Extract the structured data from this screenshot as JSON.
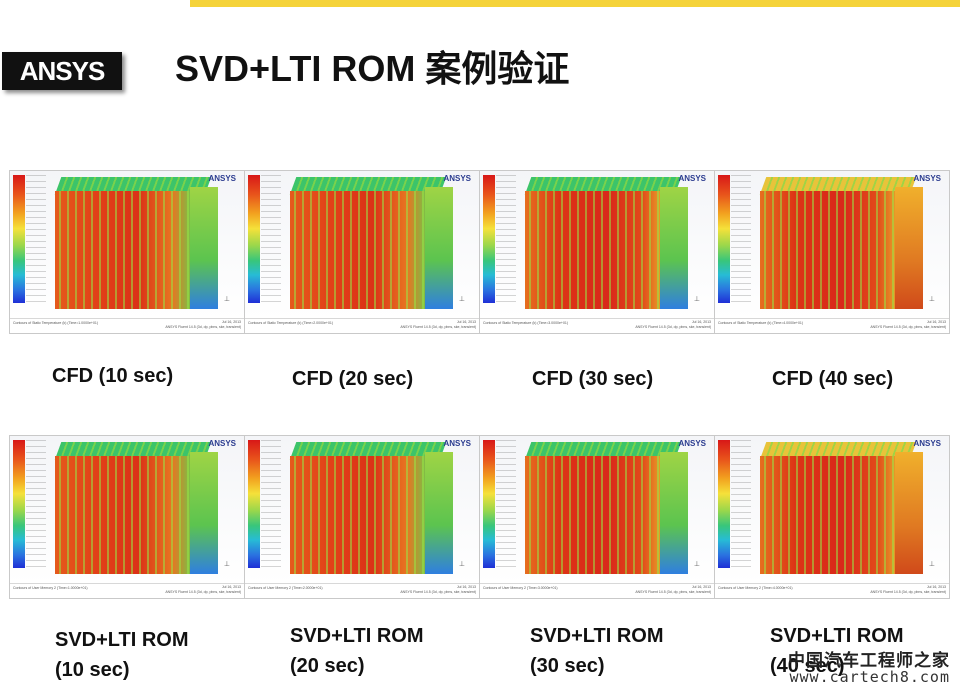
{
  "slide": {
    "title": "SVD+LTI ROM 案例验证",
    "logo_text": "ANSYS",
    "accent_color": "#f5d33a"
  },
  "panels": [
    {
      "brand": "ANSYS",
      "footer_left": "Contours of Static Temperature (k) (Time=1.0000e+01)",
      "footer_right_top": "Jul 16, 2013",
      "footer_right_bottom": "ANSYS Fluent 14.5 (3d, dp, pbns, ske, transient)",
      "caption": "CFD (10 sec)"
    },
    {
      "brand": "ANSYS",
      "footer_left": "Contours of Static Temperature (k) (Time=2.0000e+01)",
      "footer_right_top": "Jul 16, 2013",
      "footer_right_bottom": "ANSYS Fluent 14.5 (3d, dp, pbns, ske, transient)",
      "caption": "CFD (20 sec)"
    },
    {
      "brand": "ANSYS",
      "footer_left": "Contours of Static Temperature (k) (Time=3.0000e+01)",
      "footer_right_top": "Jul 16, 2013",
      "footer_right_bottom": "ANSYS Fluent 14.5 (3d, dp, pbns, ske, transient)",
      "caption": "CFD (30 sec)"
    },
    {
      "brand": "ANSYS",
      "footer_left": "Contours of Static Temperature (k) (Time=4.0000e+01)",
      "footer_right_top": "Jul 16, 2013",
      "footer_right_bottom": "ANSYS Fluent 14.5 (3d, dp, pbns, ske, transient)",
      "caption": "CFD (40 sec)"
    },
    {
      "brand": "ANSYS",
      "footer_left": "Contours of User Memory 2 (Time=1.0000e+01)",
      "footer_right_top": "Jul 16, 2013",
      "footer_right_bottom": "ANSYS Fluent 14.5 (3d, dp, pbns, ske, transient)",
      "caption_line1": "SVD+LTI ROM",
      "caption_line2": "(10 sec)"
    },
    {
      "brand": "ANSYS",
      "footer_left": "Contours of User Memory 2 (Time=2.0000e+01)",
      "footer_right_top": "Jul 16, 2013",
      "footer_right_bottom": "ANSYS Fluent 14.5 (3d, dp, pbns, ske, transient)",
      "caption_line1": "SVD+LTI ROM",
      "caption_line2": "(20 sec)"
    },
    {
      "brand": "ANSYS",
      "footer_left": "Contours of User Memory 2 (Time=3.0000e+01)",
      "footer_right_top": "Jul 16, 2013",
      "footer_right_bottom": "ANSYS Fluent 14.5 (3d, dp, pbns, ske, transient)",
      "caption_line1": "SVD+LTI ROM",
      "caption_line2": "(30 sec)"
    },
    {
      "brand": "ANSYS",
      "footer_left": "Contours of User Memory 2 (Time=4.0000e+01)",
      "footer_right_top": "Jul 16, 2013",
      "footer_right_bottom": "ANSYS Fluent 14.5 (3d, dp, pbns, ske, transient)",
      "caption_line1": "SVD+LTI ROM",
      "caption_line2": "(40 sec)"
    }
  ],
  "watermark": {
    "cn": "中国汽车工程师之家",
    "url": "www.cartech8.com"
  }
}
